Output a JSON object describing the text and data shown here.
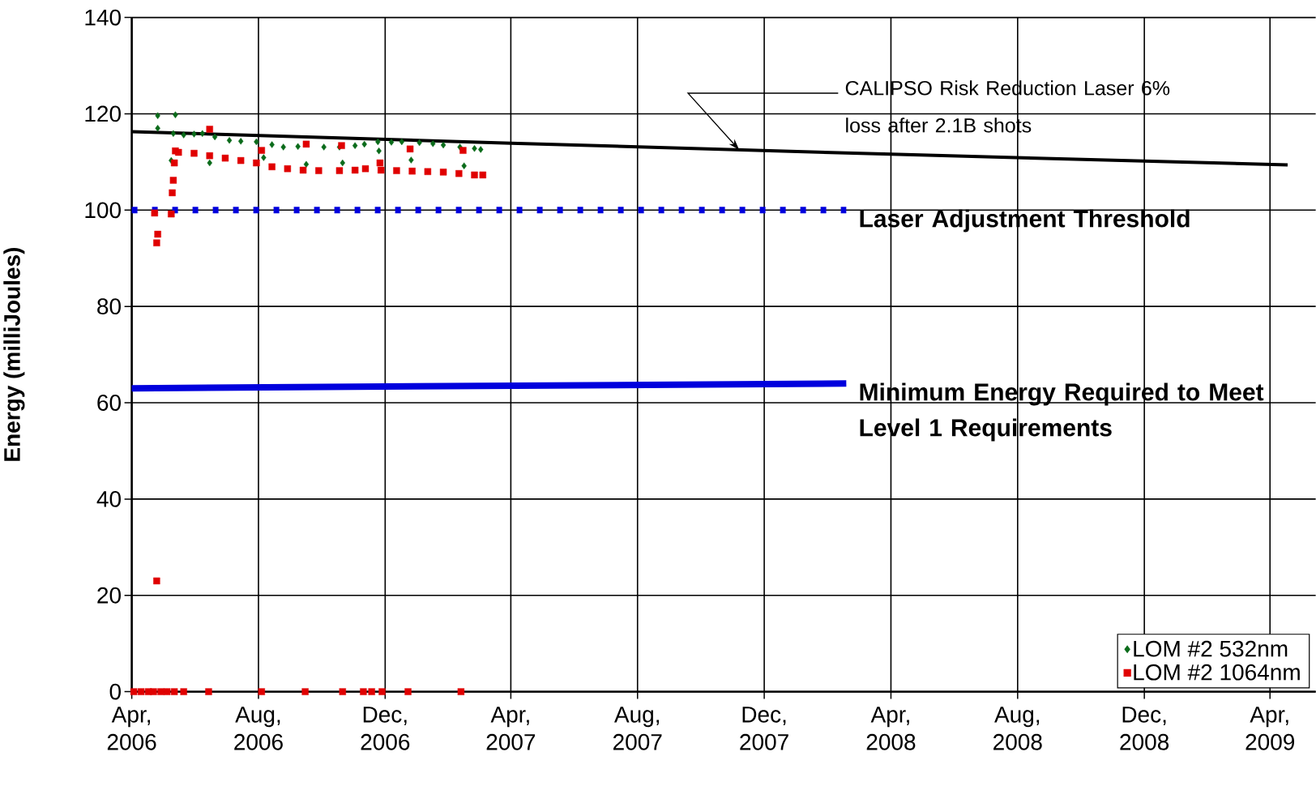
{
  "chart_data": {
    "type": "scatter",
    "ylabel": "Energy (milliJoules)",
    "xlim": [
      "2006-04-01",
      "2009-05-15"
    ],
    "ylim": [
      0,
      140
    ],
    "yticks": [
      0,
      20,
      40,
      60,
      80,
      100,
      120,
      140
    ],
    "xticks": [
      {
        "value": "2006-04-01",
        "label": "Apr, 2006"
      },
      {
        "value": "2006-08-01",
        "label": "Aug, 2006"
      },
      {
        "value": "2006-12-01",
        "label": "Dec, 2006"
      },
      {
        "value": "2007-04-01",
        "label": "Apr, 2007"
      },
      {
        "value": "2007-08-01",
        "label": "Aug, 2007"
      },
      {
        "value": "2007-12-01",
        "label": "Dec, 2007"
      },
      {
        "value": "2008-04-01",
        "label": "Apr, 2008"
      },
      {
        "value": "2008-08-01",
        "label": "Aug, 2008"
      },
      {
        "value": "2008-12-01",
        "label": "Dec, 2008"
      },
      {
        "value": "2009-04-01",
        "label": "Apr, 2009"
      }
    ],
    "grid": true,
    "legend": "bottom right",
    "annotations": [
      {
        "text": "CALIPSO Risk Reduction Laser 6% loss after 2.1B shots",
        "x": "2007-11-07",
        "y": 112.5
      }
    ],
    "series": [
      {
        "name": "LOM #2 532nm",
        "color": "#0a6b1a",
        "marker": "diamond",
        "x": [
          "2006-04-26",
          "2006-04-26",
          "2006-05-09",
          "2006-05-11",
          "2006-05-13",
          "2006-05-21",
          "2006-05-31",
          "2006-06-08",
          "2006-06-15",
          "2006-06-20",
          "2006-07-04",
          "2006-07-15",
          "2006-07-30",
          "2006-08-06",
          "2006-08-14",
          "2006-08-25",
          "2006-09-08",
          "2006-09-16",
          "2006-10-03",
          "2006-10-18",
          "2006-10-21",
          "2006-11-02",
          "2006-11-11",
          "2006-11-24",
          "2006-11-25",
          "2006-12-07",
          "2006-12-17",
          "2006-12-26",
          "2007-01-03",
          "2007-01-16",
          "2007-01-26",
          "2007-02-11",
          "2007-02-15",
          "2007-02-25",
          "2007-03-03"
        ],
        "values": [
          119.6,
          117.0,
          110.3,
          115.9,
          119.8,
          115.6,
          115.8,
          115.9,
          109.8,
          115.2,
          114.5,
          114.3,
          114.2,
          110.9,
          113.6,
          113.1,
          113.2,
          109.5,
          113.1,
          113.1,
          109.8,
          113.4,
          113.7,
          114.2,
          112.3,
          114.1,
          114.2,
          110.4,
          114.0,
          113.8,
          113.5,
          113.1,
          109.2,
          112.8,
          112.6
        ]
      },
      {
        "name": "LOM #2 1064nm",
        "color": "#e00000",
        "marker": "square",
        "x": [
          "2006-04-03",
          "2006-04-10",
          "2006-04-17",
          "2006-04-22",
          "2006-04-23",
          "2006-04-25",
          "2006-04-25",
          "2006-04-26",
          "2006-04-29",
          "2006-05-05",
          "2006-05-09",
          "2006-05-10",
          "2006-05-11",
          "2006-05-12",
          "2006-05-12",
          "2006-05-13",
          "2006-05-16",
          "2006-05-21",
          "2006-05-31",
          "2006-06-14",
          "2006-06-15",
          "2006-06-15",
          "2006-06-30",
          "2006-07-15",
          "2006-07-30",
          "2006-08-04",
          "2006-08-04",
          "2006-08-14",
          "2006-08-29",
          "2006-09-13",
          "2006-09-15",
          "2006-09-16",
          "2006-09-28",
          "2006-10-18",
          "2006-10-20",
          "2006-10-21",
          "2006-11-02",
          "2006-11-10",
          "2006-11-12",
          "2006-11-18",
          "2006-11-26",
          "2006-11-27",
          "2006-11-28",
          "2006-12-12",
          "2006-12-23",
          "2006-12-25",
          "2006-12-27",
          "2007-01-11",
          "2007-01-26",
          "2007-02-10",
          "2007-02-12",
          "2007-02-14",
          "2007-02-25",
          "2007-03-05"
        ],
        "values": [
          0,
          0,
          0,
          0,
          99.4,
          93.2,
          23.0,
          95.0,
          0,
          0,
          99.2,
          103.6,
          106.2,
          0,
          109.8,
          112.3,
          112.0,
          0,
          111.8,
          0,
          116.8,
          111.3,
          110.8,
          110.3,
          109.8,
          0,
          112.4,
          109.0,
          108.6,
          108.3,
          0,
          113.7,
          108.2,
          108.2,
          113.4,
          0,
          108.3,
          0,
          108.6,
          0,
          109.8,
          108.3,
          0,
          108.2,
          0,
          112.7,
          108.1,
          108.0,
          107.9,
          107.6,
          0,
          112.4,
          107.3,
          107.3
        ]
      },
      {
        "type": "line",
        "color": "#000000",
        "line_style": "solid",
        "x": [
          "2006-04-01",
          "2007-04-01",
          "2008-04-01",
          "2009-04-18"
        ],
        "values": [
          116.3,
          113.9,
          111.6,
          109.4
        ]
      },
      {
        "type": "line",
        "name": "Laser Adjustment Threshold",
        "color": "#0000dd",
        "line_style": "dotted",
        "x": [
          "2006-04-01",
          "2008-02-18"
        ],
        "values": [
          100,
          100
        ]
      },
      {
        "type": "line",
        "name": "Minimum Energy Required to Meet Level 1 Requirements",
        "color": "#0000dd",
        "line_style": "solid",
        "x": [
          "2006-04-01",
          "2008-02-18"
        ],
        "values": [
          63,
          64
        ]
      }
    ]
  }
}
